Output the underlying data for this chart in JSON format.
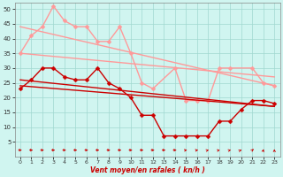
{
  "xlabel": "Vent moyen/en rafales ( kn/h )",
  "xlim": [
    -0.5,
    23.5
  ],
  "ylim": [
    0,
    52
  ],
  "yticks": [
    5,
    10,
    15,
    20,
    25,
    30,
    35,
    40,
    45,
    50
  ],
  "xticks": [
    0,
    1,
    2,
    3,
    4,
    5,
    6,
    7,
    8,
    9,
    10,
    11,
    12,
    13,
    14,
    15,
    16,
    17,
    18,
    19,
    20,
    21,
    22,
    23
  ],
  "bg_color": "#d0f5f0",
  "grid_color": "#a0d8d0",
  "series": [
    {
      "name": "rafales_data",
      "color": "#ff9999",
      "x": [
        0,
        1,
        2,
        3,
        4,
        5,
        6,
        7,
        8,
        9,
        10,
        11,
        12,
        14,
        15,
        16,
        17,
        18,
        19,
        21,
        22,
        23
      ],
      "y": [
        35,
        41,
        44,
        51,
        46,
        44,
        44,
        39,
        39,
        44,
        35,
        25,
        23,
        30,
        19,
        19,
        19,
        30,
        30,
        30,
        25,
        24
      ],
      "marker": "D",
      "markersize": 2.5,
      "linewidth": 1.0,
      "linestyle": "-"
    },
    {
      "name": "rafales_trend",
      "color": "#ff9999",
      "x": [
        0,
        23
      ],
      "y": [
        44,
        24
      ],
      "marker": "none",
      "markersize": 0,
      "linewidth": 1.0,
      "linestyle": "-"
    },
    {
      "name": "rafales_mean",
      "color": "#ff9999",
      "x": [
        0,
        23
      ],
      "y": [
        35,
        27
      ],
      "marker": "none",
      "markersize": 0,
      "linewidth": 1.0,
      "linestyle": "-"
    },
    {
      "name": "vent_data",
      "color": "#cc0000",
      "x": [
        0,
        1,
        2,
        3,
        4,
        5,
        6,
        7,
        8,
        9,
        10,
        11,
        12,
        13,
        14,
        15,
        16,
        17,
        18,
        19,
        20,
        21,
        22,
        23
      ],
      "y": [
        23,
        26,
        30,
        30,
        27,
        26,
        26,
        30,
        25,
        23,
        20,
        14,
        14,
        7,
        7,
        7,
        7,
        7,
        12,
        12,
        16,
        19,
        19,
        18
      ],
      "marker": "D",
      "markersize": 2.5,
      "linewidth": 1.0,
      "linestyle": "-"
    },
    {
      "name": "vent_trend",
      "color": "#cc0000",
      "x": [
        0,
        23
      ],
      "y": [
        26,
        17
      ],
      "marker": "none",
      "markersize": 0,
      "linewidth": 1.0,
      "linestyle": "-"
    },
    {
      "name": "vent_mean",
      "color": "#cc0000",
      "x": [
        0,
        23
      ],
      "y": [
        24,
        17
      ],
      "marker": "none",
      "markersize": 0,
      "linewidth": 1.0,
      "linestyle": "-"
    }
  ],
  "wind_arrows": {
    "x": [
      0,
      1,
      2,
      3,
      4,
      5,
      6,
      7,
      8,
      9,
      10,
      11,
      12,
      13,
      14,
      15,
      16,
      17,
      18,
      19,
      20,
      21,
      22,
      23
    ],
    "angles": [
      0,
      0,
      0,
      0,
      0,
      0,
      0,
      0,
      0,
      0,
      0,
      0,
      0,
      0,
      0,
      30,
      30,
      40,
      40,
      40,
      50,
      70,
      85,
      90
    ],
    "color": "#cc0000",
    "y": 2.2
  }
}
